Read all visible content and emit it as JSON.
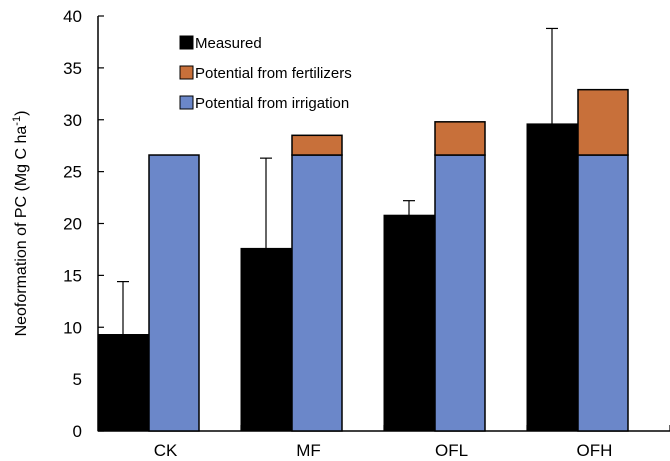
{
  "chart_data": {
    "type": "bar",
    "stacked_partial": true,
    "categories": [
      "CK",
      "MF",
      "OFL",
      "OFH"
    ],
    "ylabel": {
      "main": "Neoformation of PC (Mg C ha",
      "sup": "-1",
      "close": ")"
    },
    "xlabel": "",
    "ylim": [
      0,
      40
    ],
    "yticks": [
      "0",
      "5",
      "10",
      "15",
      "20",
      "25",
      "30",
      "35",
      "40"
    ],
    "grid": false,
    "legend_position": "top-center",
    "series": [
      {
        "name": "Measured",
        "color": "#000000",
        "values": [
          9.3,
          17.6,
          20.8,
          29.6
        ],
        "error_upper": [
          14.4,
          26.3,
          22.2,
          38.8
        ]
      },
      {
        "name": "Potential from fertilizers",
        "color": "#c8703a",
        "values": [
          0,
          1.9,
          3.2,
          6.3
        ]
      },
      {
        "name": "Potential from irrigation",
        "color": "#6b87c9",
        "values": [
          26.6,
          26.6,
          26.6,
          26.6
        ]
      }
    ]
  }
}
